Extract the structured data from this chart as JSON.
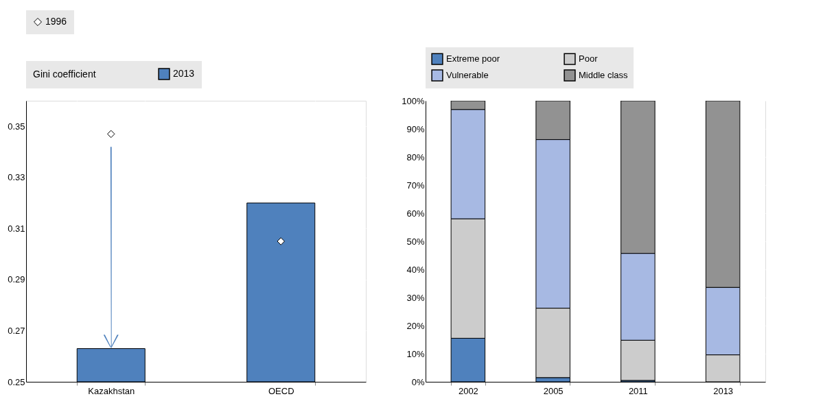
{
  "chart_data": [
    {
      "type": "bar",
      "legend_title": "Gini coefficient",
      "categories": [
        "Kazakhstan",
        "OECD"
      ],
      "series": [
        {
          "name": "2013",
          "color": "#4f81bd",
          "values": [
            0.263,
            0.32
          ]
        },
        {
          "name": "1996",
          "type": "scatter",
          "marker": "diamond",
          "color": "#ffffff",
          "values": [
            0.347,
            0.305
          ]
        }
      ],
      "ylim": [
        0.25,
        0.36
      ],
      "yticks": [
        0.25,
        0.27,
        0.29,
        0.31,
        0.33,
        0.35
      ],
      "grid": true,
      "legend": "top"
    },
    {
      "type": "bar",
      "stacked": true,
      "categories": [
        "2002",
        "2005",
        "2011",
        "2013"
      ],
      "series": [
        {
          "name": "Extreme poor",
          "color": "#4f81bd",
          "values": [
            15.5,
            1.5,
            0.5,
            0
          ]
        },
        {
          "name": "Poor",
          "color": "#cccccc",
          "values": [
            42.5,
            24.7,
            14.3,
            9.6
          ]
        },
        {
          "name": "Vulnerable",
          "color": "#a7b9e3",
          "values": [
            38.9,
            60.0,
            30.9,
            24.0
          ]
        },
        {
          "name": "Middle class",
          "color": "#929292",
          "values": [
            3.1,
            13.8,
            54.3,
            66.4
          ]
        }
      ],
      "ylim": [
        0,
        100
      ],
      "yticks": [
        {
          "value": 0,
          "label": "0%"
        },
        {
          "value": 10,
          "label": "10%"
        },
        {
          "value": 20,
          "label": "20%"
        },
        {
          "value": 30,
          "label": "30%"
        },
        {
          "value": 40,
          "label": "40%"
        },
        {
          "value": 50,
          "label": "50%"
        },
        {
          "value": 60,
          "label": "60%"
        },
        {
          "value": 70,
          "label": "70%"
        },
        {
          "value": 80,
          "label": "80%"
        },
        {
          "value": 90,
          "label": "90%"
        },
        {
          "value": 100,
          "label": "100%"
        }
      ],
      "grid": true,
      "legend": "top"
    }
  ]
}
